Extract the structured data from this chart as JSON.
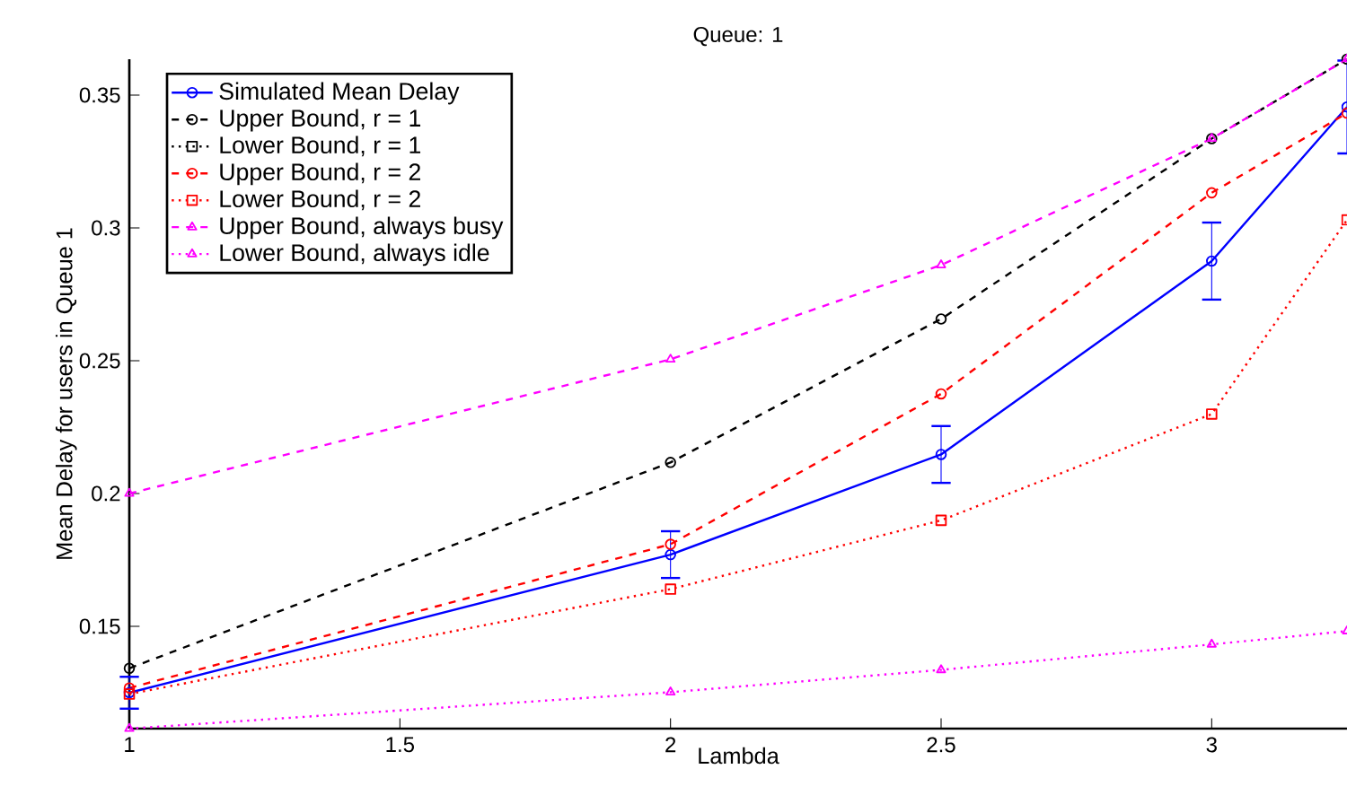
{
  "chart_data": {
    "type": "line",
    "title": "Queue: 1",
    "xlabel": "Lambda",
    "ylabel": "Mean Delay for users in Queue 1",
    "x": [
      1,
      2,
      2.5,
      3,
      3.25
    ],
    "series": [
      {
        "name": "Simulated Mean Delay",
        "color": "#0000ff",
        "marker": "circle",
        "line_style": "solid",
        "values": [
          0.125,
          0.177,
          0.2147,
          0.2875,
          0.3455
        ],
        "errors": [
          0.006,
          0.0088,
          0.0107,
          0.0145,
          0.0175
        ]
      },
      {
        "name": "Upper Bound, r = 1",
        "color": "#000000",
        "marker": "circle",
        "line_style": "dashed",
        "values": [
          0.1342,
          0.2117,
          0.2657,
          0.3336,
          0.3635
        ]
      },
      {
        "name": "Lower Bound, r = 1",
        "color": "#000000",
        "marker": "square",
        "line_style": "dotted",
        "values": [
          null,
          null,
          null,
          null,
          null
        ]
      },
      {
        "name": "Upper Bound, r = 2",
        "color": "#ff0000",
        "marker": "circle",
        "line_style": "dashed",
        "values": [
          0.1268,
          0.1809,
          0.2375,
          0.3132,
          0.3432
        ]
      },
      {
        "name": "Lower Bound, r = 2",
        "color": "#ff0000",
        "marker": "square",
        "line_style": "dotted",
        "values": [
          0.1245,
          0.164,
          0.1899,
          0.2299,
          0.303
        ]
      },
      {
        "name": "Upper Bound, always busy",
        "color": "#ff00ff",
        "marker": "triangle",
        "line_style": "dashed",
        "values": [
          0.2,
          0.2505,
          0.286,
          0.3336,
          0.3635
        ]
      },
      {
        "name": "Lower Bound, always idle",
        "color": "#ff00ff",
        "marker": "triangle",
        "line_style": "dotted",
        "values": [
          0.1115,
          0.1252,
          0.1336,
          0.1432,
          0.1482
        ]
      }
    ],
    "xlim": [
      1,
      3.25
    ],
    "ylim": [
      0.1115,
      0.3635
    ],
    "xticks": [
      1,
      1.5,
      2,
      2.5,
      3
    ],
    "yticks": [
      0.15,
      0.2,
      0.25,
      0.3,
      0.35
    ],
    "grid": false,
    "legend": "top left"
  }
}
